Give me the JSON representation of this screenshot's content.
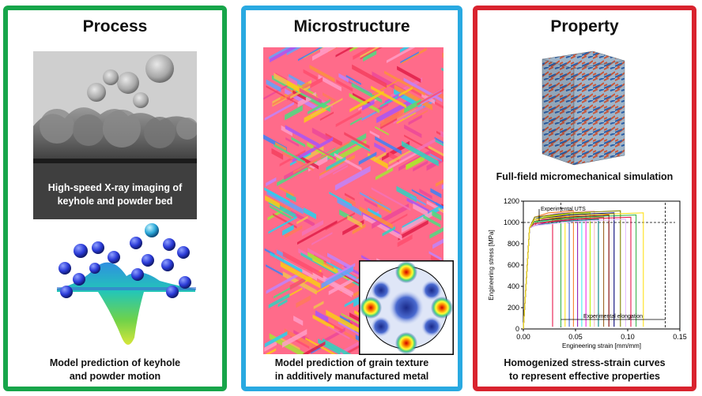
{
  "process": {
    "title": "Process",
    "xray_caption": [
      "High-speed X-ray imaging of",
      "keyhole and powder bed"
    ],
    "model_caption": [
      "Model prediction of keyhole",
      "and powder motion"
    ]
  },
  "microstructure": {
    "title": "Microstructure",
    "caption": [
      "Model prediction of grain texture",
      "in additively manufactured metal"
    ]
  },
  "property": {
    "title": "Property",
    "sim_caption": "Full-field micromechanical simulation",
    "chart_caption": [
      "Homogenized stress-strain curves",
      "to represent effective properties"
    ]
  },
  "chart_data": {
    "type": "line",
    "xlabel": "Engineering strain [mm/mm]",
    "ylabel": "Engineering stress [MPa]",
    "xlim": [
      0,
      0.15
    ],
    "ylim": [
      0,
      1200
    ],
    "xticks": [
      "0.00",
      "0.05",
      "0.10",
      "0.15"
    ],
    "yticks": [
      "0",
      "200",
      "400",
      "600",
      "800",
      "1000",
      "1200"
    ],
    "annotations": [
      "Experimental UTS",
      "Experimental elongation"
    ],
    "uts_band": [
      1000,
      1200
    ],
    "elongation_band": [
      0.036,
      0.136
    ],
    "yield_stress": 950,
    "curve_colors": [
      "#e6194b",
      "#3cb44b",
      "#ffe119",
      "#4363d8",
      "#f58231",
      "#911eb4",
      "#46f0f0",
      "#f032e6",
      "#bcf60c",
      "#fabebe",
      "#008080",
      "#9a6324",
      "#800000",
      "#000075",
      "#808000",
      "#e6beff"
    ],
    "failure_strains": [
      0.028,
      0.036,
      0.04,
      0.044,
      0.048,
      0.052,
      0.056,
      0.06,
      0.064,
      0.068,
      0.072,
      0.077,
      0.082,
      0.087,
      0.093,
      0.098,
      0.103,
      0.108,
      0.115
    ]
  }
}
